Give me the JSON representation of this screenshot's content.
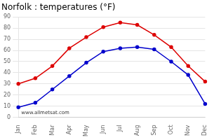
{
  "chart_data": {
    "type": "line",
    "title": "Norfolk : temperatures (°F)",
    "categories": [
      "Jan",
      "Feb",
      "Mar",
      "Apr",
      "May",
      "Jun",
      "Jul",
      "Aug",
      "Sep",
      "Oct",
      "Nov",
      "Dec"
    ],
    "series": [
      {
        "color": "#dd0000",
        "values": [
          30,
          35,
          46,
          62,
          72,
          81,
          85,
          83,
          74,
          63,
          46,
          32
        ]
      },
      {
        "color": "#0000cc",
        "values": [
          9,
          13,
          25,
          37,
          49,
          59,
          62,
          63,
          61,
          50,
          38,
          12
        ]
      }
    ],
    "ylim": [
      0,
      90
    ],
    "yticks": [
      0,
      10,
      20,
      30,
      40,
      50,
      60,
      70,
      80,
      90
    ],
    "grid": true,
    "marker": "circle",
    "annotations": [
      "www.allmetsat.com"
    ]
  }
}
